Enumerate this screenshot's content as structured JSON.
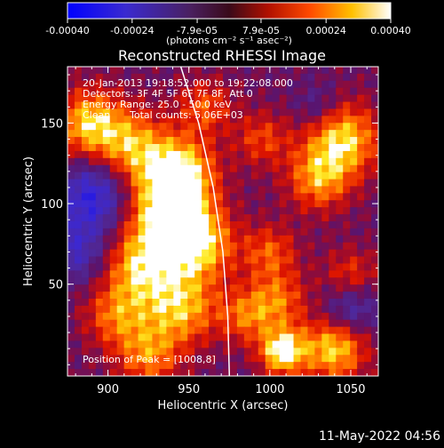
{
  "chart_data": {
    "type": "heatmap",
    "title": "Reconstructed RHESSI Image",
    "xlabel": "Heliocentric X (arcsec)",
    "ylabel": "Heliocentric Y (arcsec)",
    "xlim": [
      875,
      1067
    ],
    "ylim": [
      -7,
      185
    ],
    "x_ticks": [
      900,
      950,
      1000,
      1050
    ],
    "y_ticks": [
      50,
      100,
      150
    ],
    "colorbar": {
      "range": [
        -0.0004,
        0.0004
      ],
      "tick_values": [
        -0.0004,
        -0.00024,
        -7.9e-05,
        7.9e-05,
        0.00024,
        0.0004
      ],
      "tick_labels": [
        "-0.00040",
        "-0.00024",
        "-7.9e-05",
        "7.9e-05",
        "0.00024",
        "0.00040"
      ],
      "units_label": "(photons cm⁻² s⁻¹ asec⁻²)",
      "colors": [
        "#0000ff",
        "#4b2aa0",
        "#5a1a78",
        "#8a1030",
        "#ff3000",
        "#ff9a00",
        "#ffe000",
        "#ffffff"
      ]
    },
    "annotations": {
      "time_range": "20-Jan-2013 19:18:52.000 to 19:22:08.000",
      "detectors": "Detectors: 3F 4F 5F 6F 7F 8F, Att 0",
      "energy": "Energy Range: 25.0 - 50.0 keV",
      "method": "Clean",
      "counts": "Total counts: 5.06E+03",
      "peak": "Position of Peak = [1008,8]"
    },
    "limb_points": [
      [
        945,
        185
      ],
      [
        956,
        150
      ],
      [
        965,
        110
      ],
      [
        971,
        70
      ],
      [
        974,
        30
      ],
      [
        975,
        -7
      ]
    ],
    "hot_spots": [
      {
        "x": 888,
        "y": 150,
        "v": 0.00032,
        "r": 15
      },
      {
        "x": 915,
        "y": 135,
        "v": 0.00028,
        "r": 16
      },
      {
        "x": 945,
        "y": 120,
        "v": 0.00035,
        "r": 15
      },
      {
        "x": 935,
        "y": 95,
        "v": 0.00036,
        "r": 18
      },
      {
        "x": 955,
        "y": 75,
        "v": 0.00034,
        "r": 16
      },
      {
        "x": 920,
        "y": 60,
        "v": 0.0003,
        "r": 16
      },
      {
        "x": 945,
        "y": 35,
        "v": 0.0003,
        "r": 16
      },
      {
        "x": 905,
        "y": 30,
        "v": 0.00022,
        "r": 14
      },
      {
        "x": 925,
        "y": 5,
        "v": 0.00024,
        "r": 14
      },
      {
        "x": 960,
        "y": 160,
        "v": 0.0002,
        "r": 12
      },
      {
        "x": 1045,
        "y": 140,
        "v": 0.00034,
        "r": 16
      },
      {
        "x": 1030,
        "y": 115,
        "v": 0.00026,
        "r": 14
      },
      {
        "x": 995,
        "y": 140,
        "v": 0.00018,
        "r": 12
      },
      {
        "x": 1000,
        "y": 70,
        "v": 0.0002,
        "r": 12
      },
      {
        "x": 1005,
        "y": 40,
        "v": 0.00022,
        "r": 13
      },
      {
        "x": 985,
        "y": 30,
        "v": 0.0002,
        "r": 12
      },
      {
        "x": 1050,
        "y": 55,
        "v": 0.00018,
        "r": 12
      },
      {
        "x": 1040,
        "y": 10,
        "v": 0.00034,
        "r": 14
      },
      {
        "x": 1008,
        "y": 8,
        "v": 0.0004,
        "r": 10
      }
    ],
    "cold_spots": [
      {
        "x": 892,
        "y": 105,
        "v": -0.0003,
        "r": 16
      },
      {
        "x": 880,
        "y": 70,
        "v": -0.0002,
        "r": 14
      },
      {
        "x": 1050,
        "y": 35,
        "v": -0.0002,
        "r": 12
      },
      {
        "x": 1030,
        "y": 160,
        "v": -0.00012,
        "r": 10
      }
    ]
  },
  "footer": {
    "date": "11-May-2022 04:56"
  }
}
